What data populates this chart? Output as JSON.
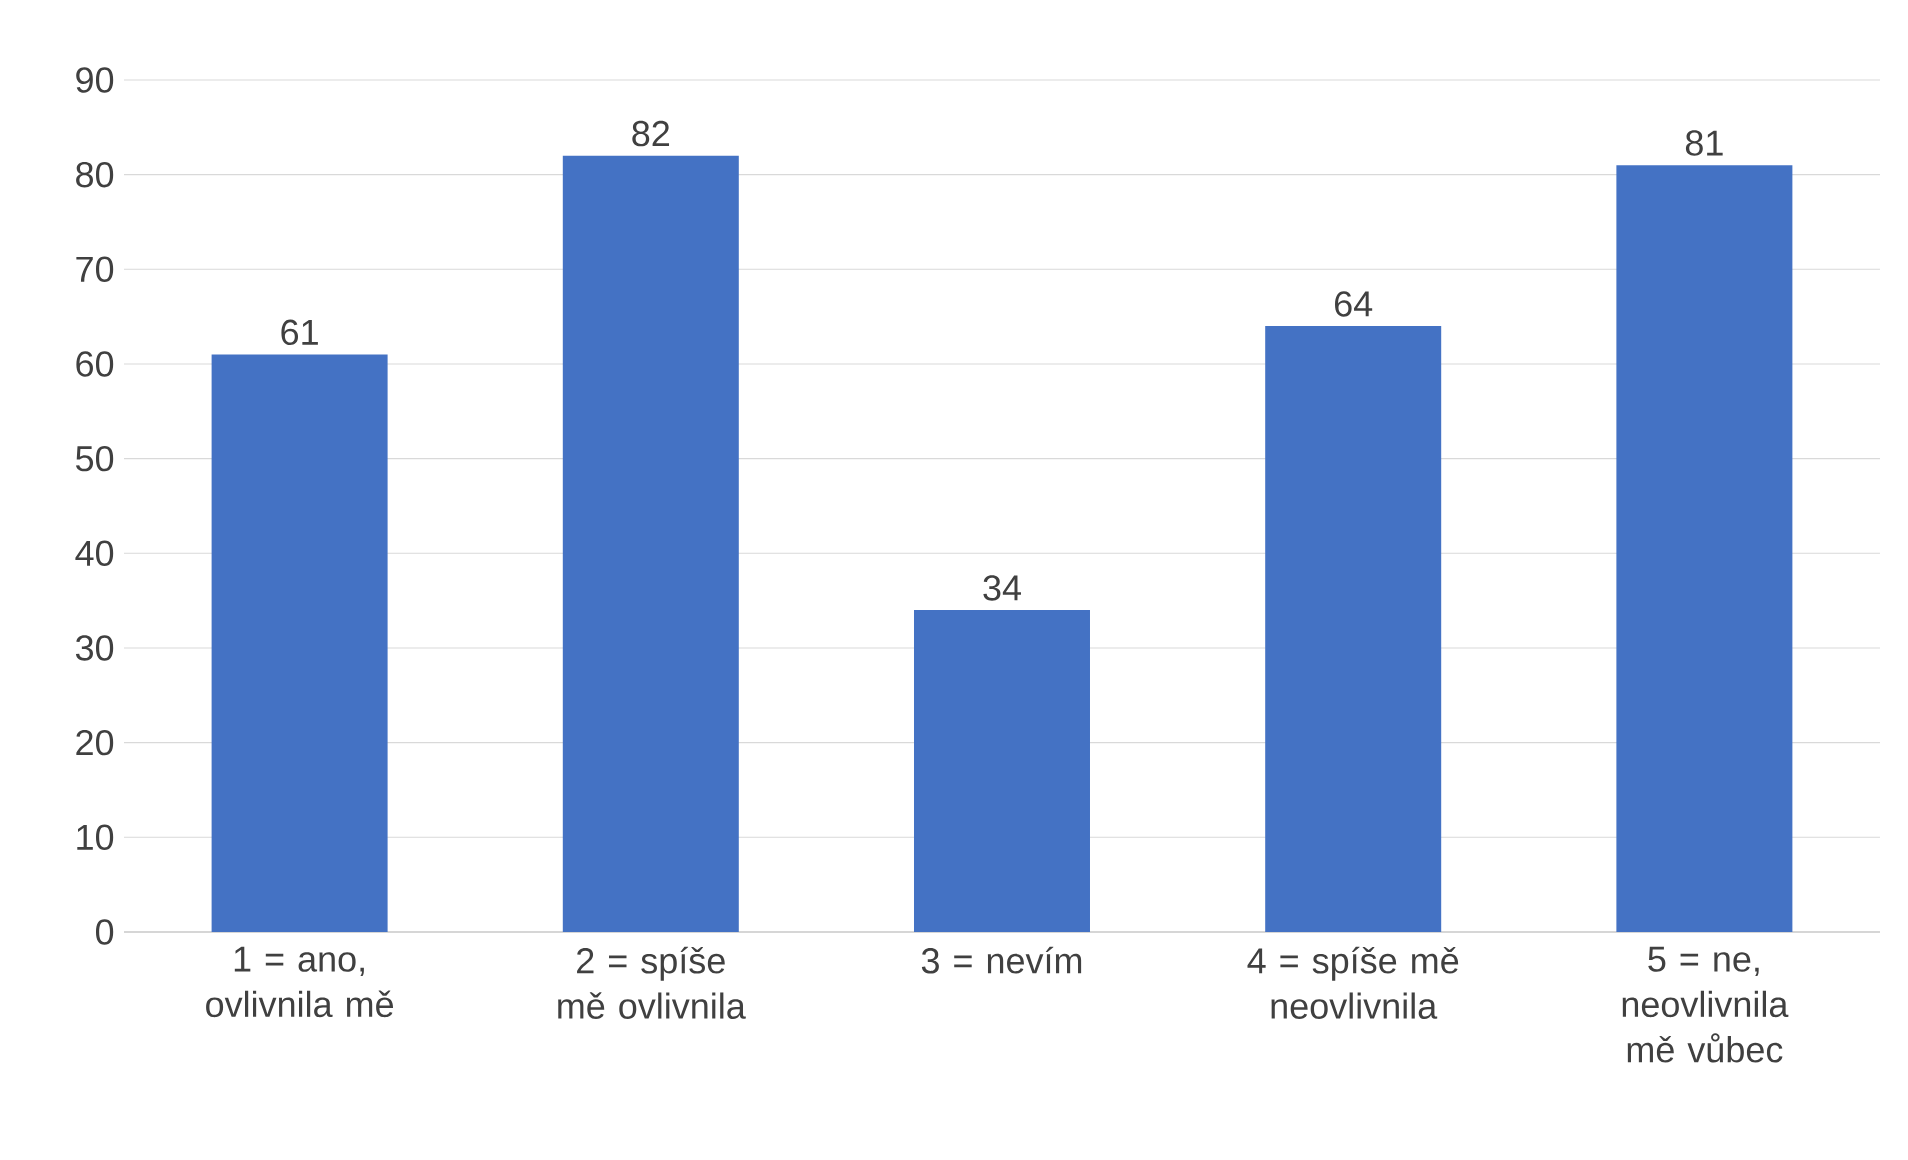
{
  "chart_data": {
    "type": "bar",
    "categories": [
      "1 = ano, ovlivnila mě",
      "2 = spíše mě ovlivnila",
      "3 = nevím",
      "4 = spíše mě neovlivnila",
      "5 = ne, neovlivnila mě vůbec"
    ],
    "values": [
      61,
      82,
      34,
      64,
      81
    ],
    "color": "#4472c4",
    "ylim": [
      0,
      90
    ],
    "yticks": [
      0,
      10,
      20,
      30,
      40,
      50,
      60,
      70,
      80,
      90
    ],
    "grid": "y",
    "data_labels": true
  }
}
